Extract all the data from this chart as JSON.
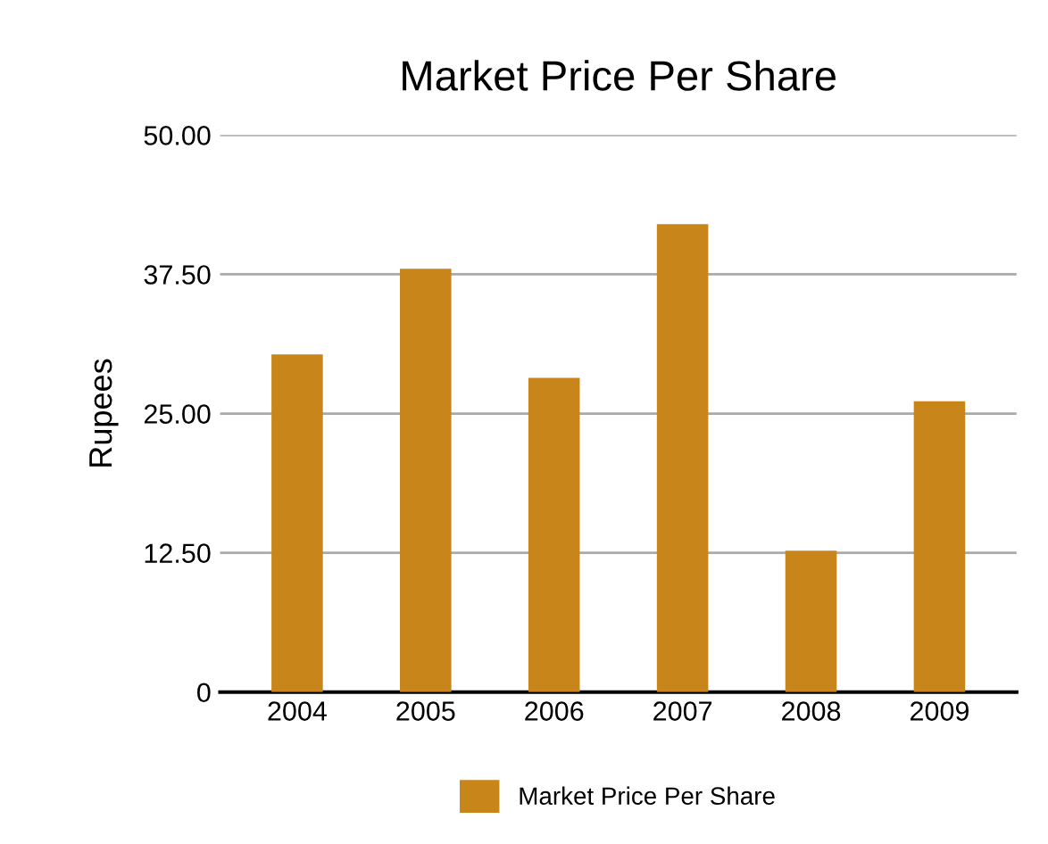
{
  "chart_data": {
    "type": "bar",
    "title": "Market Price Per Share",
    "ylabel": "Rupees",
    "categories": [
      "2004",
      "2005",
      "2006",
      "2007",
      "2008",
      "2009"
    ],
    "series": [
      {
        "name": "Market Price Per Share",
        "color": "#c8861a",
        "values": [
          30.3,
          38.0,
          28.2,
          42.0,
          12.7,
          26.1
        ]
      }
    ],
    "ylim": [
      0,
      50
    ],
    "yticks": [
      0,
      {
        "value": 12.5,
        "label": "12.50"
      },
      {
        "value": 25,
        "label": "25.00"
      },
      {
        "value": 37.5,
        "label": "37.50"
      },
      {
        "value": 50,
        "label": "50.00"
      }
    ],
    "grid": "y",
    "legend": "bottom"
  }
}
